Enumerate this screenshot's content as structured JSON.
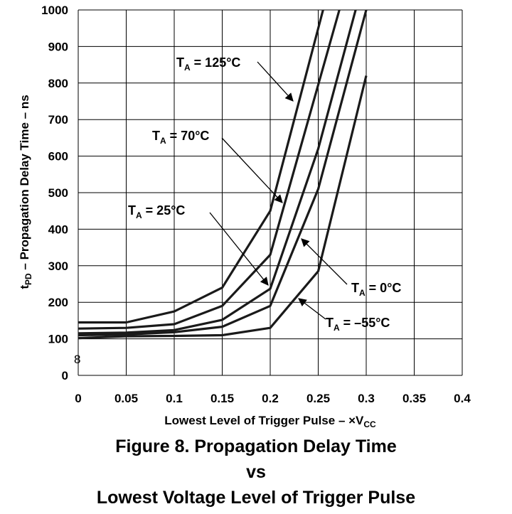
{
  "chart_data": {
    "type": "line",
    "title": "",
    "xlabel_text": "Lowest Level of Trigger Pulse – ×V",
    "xlabel_sub": "CC",
    "ylabel_pre": "t",
    "ylabel_sub": "PD",
    "ylabel_text": " – Propagation Delay Time – ns",
    "xlim": [
      0,
      0.4
    ],
    "ylim": [
      0,
      1000
    ],
    "x_ticks": [
      "0",
      "0.05",
      "0.1",
      "0.15",
      "0.2",
      "0.25",
      "0.3",
      "0.35",
      "0.4"
    ],
    "y_ticks": [
      "0",
      "100",
      "200",
      "300",
      "400",
      "500",
      "600",
      "700",
      "800",
      "900",
      "1000"
    ],
    "grid": true,
    "legend": "none",
    "line_color": "#1a1a1a",
    "stray_mark": "8",
    "series": [
      {
        "name": "125°C",
        "label_pre": "T",
        "label_sub": "A",
        "label_post": " = 125°C",
        "points": [
          [
            0,
            145
          ],
          [
            0.05,
            145
          ],
          [
            0.1,
            175
          ],
          [
            0.15,
            240
          ],
          [
            0.2,
            450
          ],
          [
            0.255,
            1000
          ]
        ]
      },
      {
        "name": "70°C",
        "label_pre": "T",
        "label_sub": "A",
        "label_post": " = 70°C",
        "points": [
          [
            0,
            128
          ],
          [
            0.05,
            130
          ],
          [
            0.1,
            140
          ],
          [
            0.15,
            190
          ],
          [
            0.2,
            330
          ],
          [
            0.272,
            1000
          ]
        ]
      },
      {
        "name": "25°C",
        "label_pre": "T",
        "label_sub": "A",
        "label_post": " = 25°C",
        "points": [
          [
            0,
            115
          ],
          [
            0.05,
            117
          ],
          [
            0.1,
            124
          ],
          [
            0.15,
            152
          ],
          [
            0.2,
            237
          ],
          [
            0.25,
            620
          ],
          [
            0.289,
            1000
          ]
        ]
      },
      {
        "name": "0°C",
        "label_pre": "T",
        "label_sub": "A",
        "label_post": " = 0°C",
        "points": [
          [
            0,
            110
          ],
          [
            0.05,
            112
          ],
          [
            0.1,
            118
          ],
          [
            0.15,
            133
          ],
          [
            0.2,
            190
          ],
          [
            0.25,
            510
          ],
          [
            0.3,
            1000
          ]
        ]
      },
      {
        "name": "–55°C",
        "label_pre": "T",
        "label_sub": "A",
        "label_post": " = –55°C",
        "points": [
          [
            0,
            102
          ],
          [
            0.05,
            107
          ],
          [
            0.1,
            108
          ],
          [
            0.15,
            110
          ],
          [
            0.2,
            130
          ],
          [
            0.25,
            285
          ],
          [
            0.3,
            820
          ]
        ]
      }
    ]
  },
  "caption": {
    "line1": "Figure 8. Propagation Delay Time",
    "line2": "vs",
    "line3": "Lowest Voltage Level of Trigger Pulse"
  }
}
